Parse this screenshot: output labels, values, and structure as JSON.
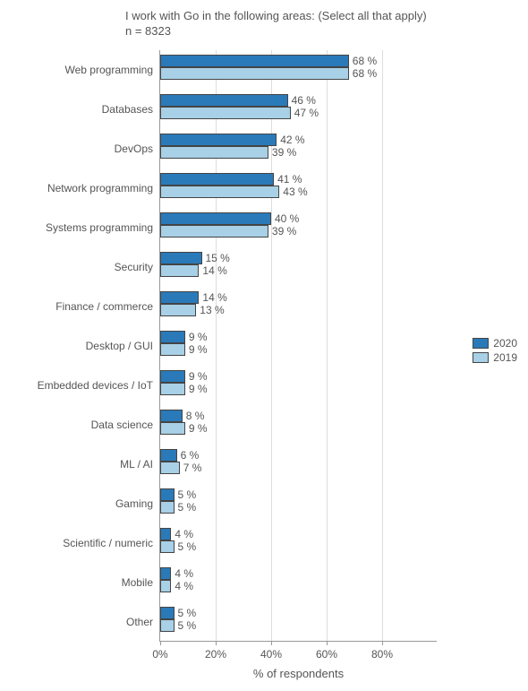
{
  "chart": {
    "type": "bar-grouped-horizontal",
    "title_line1": "I work with Go in the following areas: (Select all that apply)",
    "title_line2": "n = 8323",
    "xaxis_label": "% of respondents",
    "xlim_max": 100,
    "xticks": [
      0,
      20,
      40,
      60,
      80
    ],
    "xtick_labels": [
      "0%",
      "20%",
      "40%",
      "60%",
      "80%"
    ],
    "colors": {
      "2020": "#2a7ab9",
      "2019": "#a8d0e6"
    },
    "bar_border": "#444444",
    "grid_color": "#dddddd",
    "background": "#ffffff",
    "text_color": "#555555",
    "categories": [
      {
        "label": "Web programming",
        "v2020": 68,
        "v2019": 68
      },
      {
        "label": "Databases",
        "v2020": 46,
        "v2019": 47
      },
      {
        "label": "DevOps",
        "v2020": 42,
        "v2019": 39
      },
      {
        "label": "Network programming",
        "v2020": 41,
        "v2019": 43
      },
      {
        "label": "Systems programming",
        "v2020": 40,
        "v2019": 39
      },
      {
        "label": "Security",
        "v2020": 15,
        "v2019": 14
      },
      {
        "label": "Finance / commerce",
        "v2020": 14,
        "v2019": 13
      },
      {
        "label": "Desktop / GUI",
        "v2020": 9,
        "v2019": 9
      },
      {
        "label": "Embedded devices / IoT",
        "v2020": 9,
        "v2019": 9
      },
      {
        "label": "Data science",
        "v2020": 8,
        "v2019": 9
      },
      {
        "label": "ML / AI",
        "v2020": 6,
        "v2019": 7
      },
      {
        "label": "Gaming",
        "v2020": 5,
        "v2019": 5
      },
      {
        "label": "Scientific / numeric",
        "v2020": 4,
        "v2019": 5
      },
      {
        "label": "Mobile",
        "v2020": 4,
        "v2019": 4
      },
      {
        "label": "Other",
        "v2020": 5,
        "v2019": 5
      }
    ],
    "legend": [
      {
        "key": "2020",
        "label": "2020"
      },
      {
        "key": "2019",
        "label": "2019"
      }
    ]
  }
}
